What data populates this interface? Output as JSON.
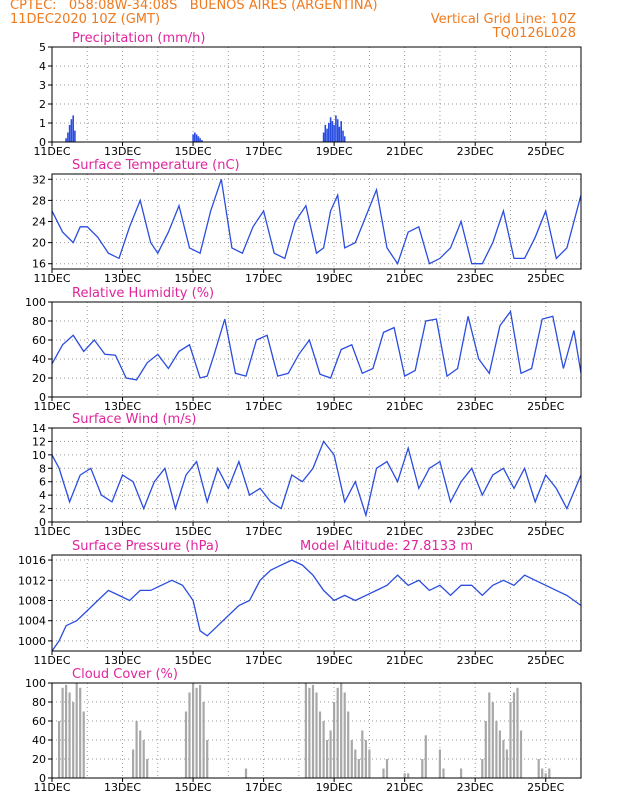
{
  "header": {
    "line1": "CPTEC:   058:08W-34:08S   BUENOS AIRES (ARGENTINA)",
    "line2": "11DEC2020 10Z (GMT)",
    "grid_note": "Vertical Grid Line: 10Z",
    "code": "TQ0126L028",
    "year_stub": "202"
  },
  "colors": {
    "series": "#2a4de0",
    "cloud": "#a8a8a8",
    "title": "#e0259c",
    "header": "#f07a1e",
    "grid": "#9a9a9a"
  },
  "chart_data": [
    {
      "type": "bar",
      "title": "Precipitation (mm/h)",
      "x_ticks": [
        "11DEC",
        "13DEC",
        "15DEC",
        "17DEC",
        "19DEC",
        "21DEC",
        "23DEC",
        "25DEC"
      ],
      "xlim": [
        0,
        15
      ],
      "ylim": [
        0,
        5
      ],
      "y_ticks": [
        0,
        1,
        2,
        3,
        4,
        5
      ],
      "x": [
        0.4,
        0.45,
        0.5,
        0.55,
        0.6,
        0.65,
        4.0,
        4.05,
        4.1,
        4.15,
        4.2,
        4.25,
        7.7,
        7.75,
        7.8,
        7.85,
        7.9,
        7.95,
        8.0,
        8.05,
        8.1,
        8.15,
        8.2,
        8.25,
        8.3
      ],
      "values": [
        0.2,
        0.5,
        0.9,
        1.2,
        1.4,
        0.6,
        0.4,
        0.5,
        0.4,
        0.3,
        0.2,
        0.1,
        0.5,
        0.9,
        0.7,
        1.0,
        1.3,
        1.1,
        0.9,
        1.4,
        1.2,
        0.8,
        1.1,
        0.6,
        0.3
      ],
      "grid": true
    },
    {
      "type": "line",
      "title": "Surface Temperature (nC)",
      "x_ticks": [
        "11DEC",
        "13DEC",
        "15DEC",
        "17DEC",
        "19DEC",
        "21DEC",
        "23DEC",
        "25DEC"
      ],
      "xlim": [
        0,
        15
      ],
      "ylim": [
        15,
        33
      ],
      "y_ticks": [
        16,
        20,
        24,
        28,
        32
      ],
      "x": [
        0,
        0.3,
        0.6,
        0.8,
        1.0,
        1.3,
        1.6,
        1.9,
        2.2,
        2.5,
        2.8,
        3.0,
        3.3,
        3.6,
        3.9,
        4.2,
        4.5,
        4.8,
        5.1,
        5.4,
        5.7,
        6.0,
        6.3,
        6.6,
        6.9,
        7.2,
        7.5,
        7.7,
        7.9,
        8.1,
        8.3,
        8.6,
        8.9,
        9.2,
        9.5,
        9.8,
        10.1,
        10.4,
        10.7,
        11.0,
        11.3,
        11.6,
        11.9,
        12.2,
        12.5,
        12.8,
        13.1,
        13.4,
        13.7,
        14.0,
        14.3,
        14.6,
        15.0
      ],
      "y": [
        26,
        22,
        20,
        23,
        23,
        21,
        18,
        17,
        23,
        28,
        20,
        18,
        22,
        27,
        19,
        18,
        26,
        32,
        19,
        18,
        23,
        26,
        18,
        17,
        24,
        27,
        18,
        19,
        26,
        29,
        19,
        20,
        25,
        30,
        19,
        16,
        22,
        23,
        16,
        17,
        19,
        24,
        16,
        16,
        20,
        26,
        17,
        17,
        21,
        26,
        17,
        19,
        29
      ],
      "grid": true
    },
    {
      "type": "line",
      "title": "Relative Humidity (%)",
      "x_ticks": [
        "11DEC",
        "13DEC",
        "15DEC",
        "17DEC",
        "19DEC",
        "21DEC",
        "23DEC",
        "25DEC"
      ],
      "xlim": [
        0,
        15
      ],
      "ylim": [
        0,
        100
      ],
      "y_ticks": [
        0,
        20,
        40,
        60,
        80,
        100
      ],
      "x": [
        0,
        0.3,
        0.6,
        0.9,
        1.2,
        1.5,
        1.8,
        2.1,
        2.4,
        2.7,
        3.0,
        3.3,
        3.6,
        3.9,
        4.2,
        4.4,
        4.6,
        4.9,
        5.2,
        5.5,
        5.8,
        6.1,
        6.4,
        6.7,
        7.0,
        7.3,
        7.6,
        7.9,
        8.2,
        8.5,
        8.8,
        9.1,
        9.4,
        9.7,
        10.0,
        10.3,
        10.6,
        10.9,
        11.2,
        11.5,
        11.8,
        12.1,
        12.4,
        12.7,
        13.0,
        13.3,
        13.6,
        13.9,
        14.2,
        14.5,
        14.8,
        15.0
      ],
      "y": [
        35,
        55,
        65,
        48,
        60,
        45,
        44,
        20,
        18,
        36,
        45,
        30,
        48,
        55,
        20,
        22,
        45,
        82,
        25,
        22,
        60,
        65,
        22,
        25,
        45,
        60,
        24,
        20,
        50,
        55,
        25,
        30,
        68,
        73,
        22,
        28,
        80,
        82,
        22,
        30,
        85,
        40,
        25,
        75,
        90,
        25,
        30,
        82,
        85,
        30,
        70,
        25
      ],
      "grid": true
    },
    {
      "type": "line",
      "title": "Surface Wind (m/s)",
      "x_ticks": [
        "11DEC",
        "13DEC",
        "15DEC",
        "17DEC",
        "19DEC",
        "21DEC",
        "23DEC",
        "25DEC"
      ],
      "xlim": [
        0,
        15
      ],
      "ylim": [
        0,
        14
      ],
      "y_ticks": [
        0,
        2,
        4,
        6,
        8,
        10,
        12,
        14
      ],
      "x": [
        0,
        0.2,
        0.5,
        0.8,
        1.1,
        1.4,
        1.7,
        2.0,
        2.3,
        2.6,
        2.9,
        3.2,
        3.5,
        3.8,
        4.1,
        4.4,
        4.7,
        5.0,
        5.3,
        5.6,
        5.9,
        6.2,
        6.5,
        6.8,
        7.1,
        7.4,
        7.7,
        8.0,
        8.3,
        8.6,
        8.9,
        9.2,
        9.5,
        9.8,
        10.1,
        10.4,
        10.7,
        11.0,
        11.3,
        11.6,
        11.9,
        12.2,
        12.5,
        12.8,
        13.1,
        13.4,
        13.7,
        14.0,
        14.3,
        14.6,
        15.0
      ],
      "y": [
        10,
        8,
        3,
        7,
        8,
        4,
        3,
        7,
        6,
        2,
        6,
        8,
        2,
        7,
        9,
        3,
        8,
        5,
        9,
        4,
        5,
        3,
        2,
        7,
        6,
        8,
        12,
        10,
        3,
        6,
        1,
        8,
        9,
        6,
        11,
        5,
        8,
        9,
        3,
        6,
        8,
        4,
        7,
        8,
        5,
        8,
        3,
        7,
        5,
        2,
        7
      ],
      "grid": true
    },
    {
      "type": "line",
      "title": "Surface Pressure (hPa)",
      "annotation": "Model Altitude: 27.8133  m",
      "x_ticks": [
        "11DEC",
        "13DEC",
        "15DEC",
        "17DEC",
        "19DEC",
        "21DEC",
        "23DEC",
        "25DEC"
      ],
      "xlim": [
        0,
        15
      ],
      "ylim": [
        998,
        1017
      ],
      "y_ticks": [
        1000,
        1004,
        1008,
        1012,
        1016
      ],
      "x": [
        0,
        0.2,
        0.4,
        0.7,
        1.0,
        1.3,
        1.6,
        1.9,
        2.2,
        2.5,
        2.8,
        3.1,
        3.4,
        3.7,
        4.0,
        4.2,
        4.4,
        4.7,
        5.0,
        5.3,
        5.6,
        5.9,
        6.2,
        6.5,
        6.8,
        7.1,
        7.4,
        7.7,
        8.0,
        8.3,
        8.6,
        8.9,
        9.2,
        9.5,
        9.8,
        10.1,
        10.4,
        10.7,
        11.0,
        11.3,
        11.6,
        11.9,
        12.2,
        12.5,
        12.8,
        13.1,
        13.4,
        13.7,
        14.0,
        14.3,
        14.6,
        15.0
      ],
      "y": [
        998,
        1000,
        1003,
        1004,
        1006,
        1008,
        1010,
        1009,
        1008,
        1010,
        1010,
        1011,
        1012,
        1011,
        1008,
        1002,
        1001,
        1003,
        1005,
        1007,
        1008,
        1012,
        1014,
        1015,
        1016,
        1015,
        1013,
        1010,
        1008,
        1009,
        1008,
        1009,
        1010,
        1011,
        1013,
        1011,
        1012,
        1010,
        1011,
        1009,
        1011,
        1011,
        1009,
        1011,
        1012,
        1011,
        1013,
        1012,
        1011,
        1010,
        1009,
        1007
      ],
      "grid": true
    },
    {
      "type": "bar",
      "title": "Cloud Cover (%)",
      "x_ticks": [
        "11DEC",
        "13DEC",
        "15DEC",
        "17DEC",
        "19DEC",
        "21DEC",
        "23DEC",
        "25DEC"
      ],
      "xlim": [
        0,
        15
      ],
      "ylim": [
        0,
        100
      ],
      "y_ticks": [
        0,
        20,
        40,
        60,
        80,
        100
      ],
      "x": [
        0.2,
        0.3,
        0.4,
        0.5,
        0.6,
        0.7,
        0.8,
        0.9,
        2.3,
        2.4,
        2.5,
        2.6,
        2.7,
        3.8,
        3.9,
        4.0,
        4.1,
        4.2,
        4.3,
        4.4,
        5.5,
        7.2,
        7.3,
        7.4,
        7.5,
        7.6,
        7.7,
        7.8,
        7.9,
        8.0,
        8.1,
        8.2,
        8.3,
        8.4,
        8.5,
        8.6,
        8.7,
        8.8,
        8.9,
        9.0,
        9.4,
        9.5,
        10.0,
        10.1,
        10.5,
        10.6,
        11.0,
        11.1,
        11.6,
        12.2,
        12.3,
        12.4,
        12.5,
        12.6,
        12.7,
        12.8,
        12.9,
        13.0,
        13.1,
        13.2,
        13.3,
        13.8,
        13.9,
        14.0,
        14.1
      ],
      "values": [
        60,
        95,
        98,
        90,
        80,
        100,
        95,
        70,
        30,
        60,
        50,
        40,
        20,
        70,
        90,
        100,
        95,
        98,
        80,
        40,
        10,
        100,
        95,
        98,
        90,
        70,
        60,
        40,
        50,
        80,
        95,
        100,
        90,
        70,
        40,
        30,
        20,
        50,
        40,
        30,
        10,
        20,
        5,
        5,
        20,
        45,
        30,
        10,
        10,
        20,
        60,
        90,
        80,
        60,
        50,
        40,
        30,
        80,
        90,
        95,
        50,
        20,
        10,
        5,
        10
      ],
      "grid": true
    }
  ]
}
